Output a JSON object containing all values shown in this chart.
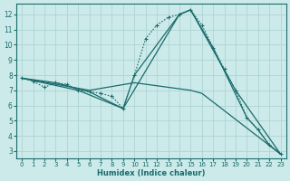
{
  "xlabel": "Humidex (Indice chaleur)",
  "background_color": "#cceaea",
  "grid_color": "#aed4d4",
  "line_color": "#1a6b6b",
  "xlim": [
    -0.5,
    23.5
  ],
  "ylim": [
    2.5,
    12.7
  ],
  "yticks": [
    3,
    4,
    5,
    6,
    7,
    8,
    9,
    10,
    11,
    12
  ],
  "xticks": [
    0,
    1,
    2,
    3,
    4,
    5,
    6,
    7,
    8,
    9,
    10,
    11,
    12,
    13,
    14,
    15,
    16,
    17,
    18,
    19,
    20,
    21,
    22,
    23
  ],
  "lines": [
    {
      "x": [
        0,
        1,
        2,
        3,
        4,
        5,
        6,
        7,
        8,
        9,
        10,
        11,
        12,
        13,
        14,
        15,
        16,
        17,
        18,
        19,
        20,
        21,
        22,
        23
      ],
      "y": [
        7.8,
        7.6,
        7.2,
        7.5,
        7.4,
        7.0,
        6.9,
        6.8,
        6.6,
        5.8,
        8.0,
        10.4,
        11.3,
        11.8,
        12.0,
        12.3,
        11.3,
        9.8,
        8.4,
        7.0,
        5.2,
        4.4,
        3.4,
        2.8
      ],
      "style": "dotted",
      "marker": "+"
    },
    {
      "x": [
        0,
        6,
        10,
        15,
        16,
        23
      ],
      "y": [
        7.8,
        7.0,
        7.5,
        7.0,
        6.8,
        2.8
      ],
      "style": "solid",
      "marker": null
    },
    {
      "x": [
        0,
        5,
        9,
        10,
        14,
        15,
        19,
        23
      ],
      "y": [
        7.8,
        7.0,
        5.8,
        8.0,
        12.0,
        12.3,
        7.0,
        2.8
      ],
      "style": "solid",
      "marker": null
    },
    {
      "x": [
        0,
        3,
        6,
        9,
        14,
        15,
        17,
        20,
        21,
        22,
        23
      ],
      "y": [
        7.8,
        7.5,
        6.9,
        5.8,
        12.0,
        12.3,
        9.8,
        5.2,
        4.4,
        3.4,
        2.8
      ],
      "style": "solid",
      "marker": null
    }
  ]
}
